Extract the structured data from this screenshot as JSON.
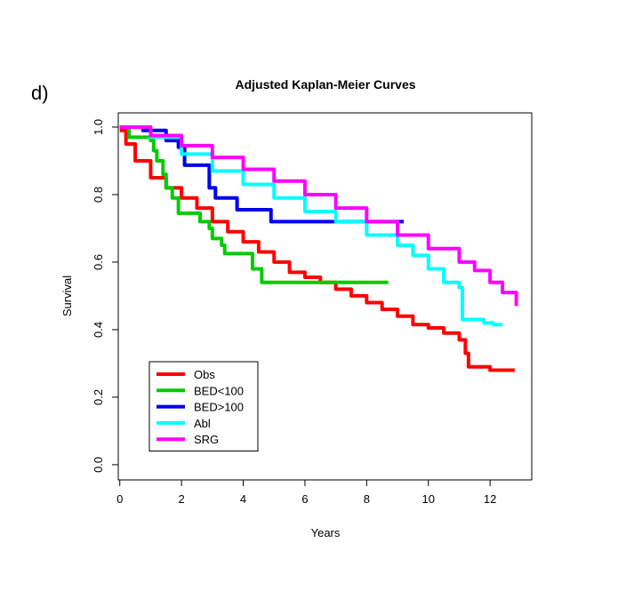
{
  "panel_label": "d)",
  "chart_data": {
    "type": "line",
    "drawstyle": "steps-post",
    "title": "Adjusted Kaplan-Meier Curves",
    "x_label": "Years",
    "y_label": "Survival",
    "xlim": [
      -0.05,
      13.35
    ],
    "ylim": [
      -0.045,
      1.042
    ],
    "xticks": [
      0,
      2,
      4,
      6,
      8,
      10,
      12
    ],
    "yticks": [
      {
        "value": 0,
        "label": "0.0"
      },
      0.2,
      0.4,
      0.6,
      0.8,
      {
        "value": 1,
        "label": "1.0"
      }
    ],
    "legend": "lower left",
    "series": [
      {
        "name": "Obs",
        "color": "#ff0000",
        "x": [
          0,
          0.2,
          0.5,
          1,
          1.5,
          2,
          2.5,
          3,
          3.5,
          4,
          4.5,
          5,
          5.5,
          6,
          6.5,
          7,
          7.5,
          8,
          8.5,
          9,
          9.5,
          10,
          10.5,
          11,
          11.2,
          11.3,
          12,
          12.8
        ],
        "values": [
          0.99,
          0.95,
          0.9,
          0.85,
          0.82,
          0.79,
          0.76,
          0.72,
          0.69,
          0.66,
          0.63,
          0.6,
          0.57,
          0.555,
          0.54,
          0.52,
          0.5,
          0.48,
          0.46,
          0.44,
          0.415,
          0.405,
          0.39,
          0.37,
          0.33,
          0.29,
          0.28,
          0.28
        ]
      },
      {
        "name": "BED<100",
        "color": "#00cc00",
        "x": [
          0,
          0.3,
          1.0,
          1.1,
          1.2,
          1.4,
          1.5,
          1.7,
          1.9,
          2.6,
          2.9,
          3.0,
          3.3,
          3.4,
          4.3,
          4.6,
          8.7
        ],
        "values": [
          1.0,
          0.97,
          0.96,
          0.93,
          0.9,
          0.86,
          0.82,
          0.79,
          0.745,
          0.72,
          0.7,
          0.67,
          0.65,
          0.625,
          0.58,
          0.54,
          0.54
        ]
      },
      {
        "name": "BED>100",
        "color": "#0000ee",
        "x": [
          0,
          0.75,
          1.5,
          1.9,
          2.1,
          2.9,
          3.1,
          3.8,
          4.9,
          9.2
        ],
        "values": [
          1.0,
          0.99,
          0.96,
          0.94,
          0.887,
          0.82,
          0.79,
          0.755,
          0.72,
          0.72
        ]
      },
      {
        "name": "Abl",
        "color": "#00ffff",
        "x": [
          0,
          1,
          2,
          3,
          4,
          5,
          6,
          7,
          8,
          9,
          9.5,
          10,
          10.5,
          11,
          11.1,
          11.8,
          12.1,
          12.4
        ],
        "values": [
          1.0,
          0.97,
          0.92,
          0.87,
          0.83,
          0.79,
          0.75,
          0.72,
          0.68,
          0.65,
          0.62,
          0.58,
          0.54,
          0.525,
          0.43,
          0.42,
          0.415,
          0.415
        ]
      },
      {
        "name": "SRG",
        "color": "#ff00ff",
        "x": [
          0,
          1,
          2,
          3,
          4,
          5,
          6,
          7,
          8,
          9,
          10,
          11,
          11.5,
          12,
          12.4,
          12.8,
          12.85
        ],
        "values": [
          1.0,
          0.975,
          0.945,
          0.91,
          0.875,
          0.84,
          0.8,
          0.76,
          0.72,
          0.68,
          0.64,
          0.6,
          0.575,
          0.54,
          0.51,
          0.51,
          0.47
        ]
      }
    ]
  }
}
